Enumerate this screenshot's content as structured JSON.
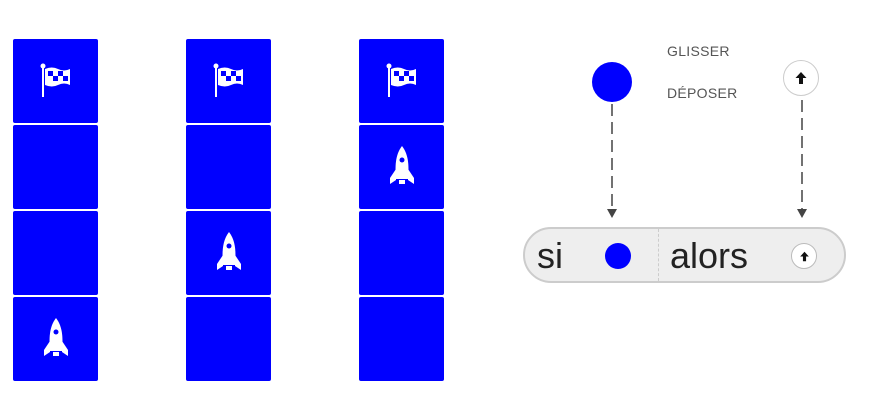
{
  "columns": [
    {
      "cells": [
        "flag-icon",
        "empty",
        "empty",
        "rocket-icon"
      ]
    },
    {
      "cells": [
        "flag-icon",
        "empty",
        "rocket-icon",
        "empty"
      ]
    },
    {
      "cells": [
        "flag-icon",
        "rocket-icon",
        "empty",
        "empty"
      ]
    }
  ],
  "legend": {
    "drag_label": "GLISSER",
    "drop_label": "DÉPOSER"
  },
  "block": {
    "if_label": "si",
    "then_label": "alors"
  },
  "colors": {
    "cell": "#0000ff",
    "dot": "#0000ff",
    "block_bg": "#eeeeee",
    "block_border": "#cccccc"
  }
}
